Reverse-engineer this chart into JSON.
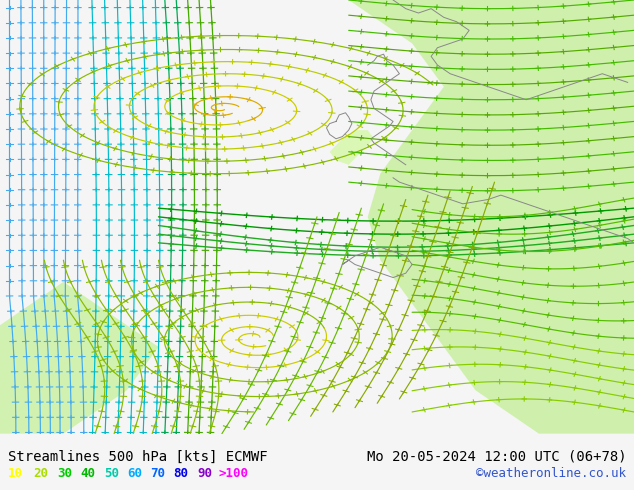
{
  "title_left": "Streamlines 500 hPa [kts] ECMWF",
  "title_right": "Mo 20-05-2024 12:00 UTC (06+78)",
  "watermark": "©weatheronline.co.uk",
  "legend_values": [
    "10",
    "20",
    "30",
    "40",
    "50",
    "60",
    "70",
    "80",
    "90",
    ">100"
  ],
  "legend_colors": [
    "#ffff00",
    "#aadd00",
    "#00cc00",
    "#00bb00",
    "#00ccaa",
    "#00aaff",
    "#0066ff",
    "#0000ee",
    "#8800cc",
    "#ff00ff"
  ],
  "bg_color": "#e8e8e8",
  "green_fill": "#c8f0a0",
  "title_color": "#000000",
  "title_fontsize": 10,
  "legend_fontsize": 9,
  "watermark_color": "#3355cc",
  "figsize": [
    6.34,
    4.9
  ],
  "dpi": 100,
  "bottom_bar_color": "#f5f5f5",
  "stream_colors": {
    "cyan_blue": "#44bbff",
    "cyan": "#00cccc",
    "teal_green": "#00bb88",
    "green": "#00aa00",
    "yellow_green": "#88cc00",
    "yellow": "#ddcc00",
    "orange_yellow": "#ffbb00"
  }
}
